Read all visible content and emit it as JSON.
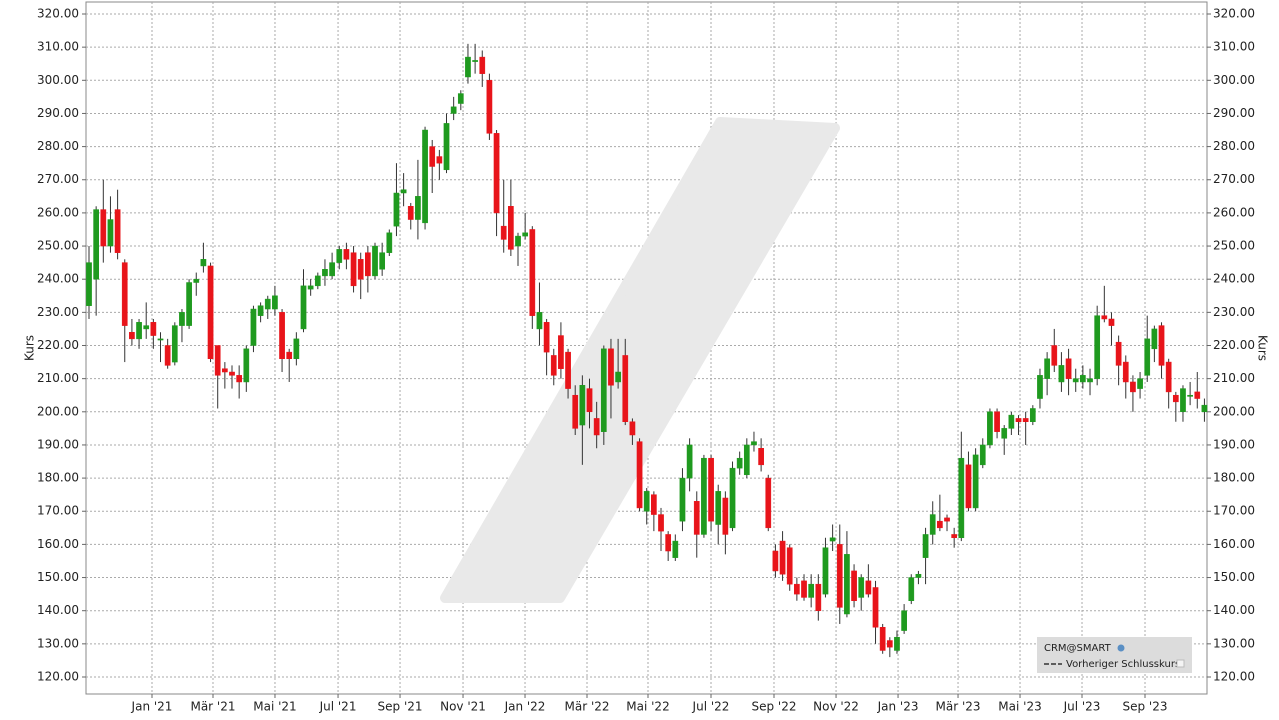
{
  "chart_data": {
    "type": "candlestick",
    "y_axis_label": "Kurs",
    "y2_axis_label": "Kurs",
    "grid": true,
    "legend_position": "bottom-right",
    "up_color": "#1f9a1f",
    "down_color": "#e8141a",
    "wick_color": "#333333",
    "reference_line_label": "Vorheriger Schlusskurs",
    "reference_line_color": "#333333",
    "xlim": [
      -0.42,
      156.36
    ],
    "ylim": [
      114.87,
      323.62
    ],
    "xticks": [
      {
        "value": 8.81,
        "label": "Jan '21"
      },
      {
        "value": 17.34,
        "label": "Mär '21"
      },
      {
        "value": 26.01,
        "label": "Mai '21"
      },
      {
        "value": 34.83,
        "label": "Jul '21"
      },
      {
        "value": 43.5,
        "label": "Sep '21"
      },
      {
        "value": 52.31,
        "label": "Nov '21"
      },
      {
        "value": 60.98,
        "label": "Jan '22"
      },
      {
        "value": 69.65,
        "label": "Mär '22"
      },
      {
        "value": 78.18,
        "label": "Mai '22"
      },
      {
        "value": 86.99,
        "label": "Jul '22"
      },
      {
        "value": 95.8,
        "label": "Sep '22"
      },
      {
        "value": 104.48,
        "label": "Nov '22"
      },
      {
        "value": 113.15,
        "label": "Jan '23"
      },
      {
        "value": 121.54,
        "label": "Mär '23"
      },
      {
        "value": 130.21,
        "label": "Mai '23"
      },
      {
        "value": 138.88,
        "label": "Jul '23"
      },
      {
        "value": 147.69,
        "label": "Sep '23"
      }
    ],
    "yticks": [
      {
        "value": 120,
        "label": "120.00"
      },
      {
        "value": 130,
        "label": "130.00"
      },
      {
        "value": 140,
        "label": "140.00"
      },
      {
        "value": 150,
        "label": "150.00"
      },
      {
        "value": 160,
        "label": "160.00"
      },
      {
        "value": 170,
        "label": "170.00"
      },
      {
        "value": 180,
        "label": "180.00"
      },
      {
        "value": 190,
        "label": "190.00"
      },
      {
        "value": 200,
        "label": "200.00"
      },
      {
        "value": 210,
        "label": "210.00"
      },
      {
        "value": 220,
        "label": "220.00"
      },
      {
        "value": 230,
        "label": "230.00"
      },
      {
        "value": 240,
        "label": "240.00"
      },
      {
        "value": 250,
        "label": "250.00"
      },
      {
        "value": 260,
        "label": "260.00"
      },
      {
        "value": 270,
        "label": "270.00"
      },
      {
        "value": 280,
        "label": "280.00"
      },
      {
        "value": 290,
        "label": "290.00"
      },
      {
        "value": 300,
        "label": "300.00"
      },
      {
        "value": 310,
        "label": "310.00"
      },
      {
        "value": 320,
        "label": "320.00"
      }
    ],
    "series": [
      {
        "name": "CRM@SMART",
        "open": [
          232,
          240,
          261,
          250,
          261,
          245,
          224,
          222,
          225,
          227,
          222,
          220,
          215,
          226,
          226,
          239,
          244,
          244,
          220,
          213,
          212,
          211,
          209,
          220,
          229,
          231,
          231,
          230,
          218,
          216,
          225,
          237,
          238,
          241,
          241,
          245,
          249,
          248,
          246,
          248,
          241,
          243,
          248,
          256,
          266,
          262,
          258,
          257,
          280,
          277,
          273,
          290,
          293,
          301,
          306,
          307,
          300,
          284,
          256,
          262,
          250,
          253,
          255,
          225,
          227,
          217,
          223,
          218,
          205,
          196,
          207,
          198,
          194,
          219,
          209,
          217,
          197,
          191,
          170,
          175,
          169,
          163,
          156,
          167,
          180,
          173,
          163,
          186,
          166,
          174,
          165,
          183,
          181,
          190,
          189,
          180,
          158,
          161,
          159,
          148,
          149,
          144,
          148,
          145,
          161,
          160,
          139,
          152,
          144,
          149,
          147,
          135,
          131,
          128,
          134,
          143,
          150,
          156,
          163,
          167,
          168,
          163,
          162,
          184,
          171,
          184,
          190,
          200,
          192,
          195,
          198,
          198,
          197,
          204,
          210,
          220,
          209,
          216,
          209,
          209,
          209,
          210,
          229,
          228,
          221,
          215,
          209,
          207,
          211,
          219,
          226,
          215,
          205,
          200,
          205,
          206,
          200
        ],
        "high": [
          250,
          262,
          270,
          265,
          267,
          246,
          228,
          228,
          233,
          228,
          224,
          222,
          227,
          231,
          240,
          242,
          251,
          245,
          220,
          215,
          214,
          214,
          220,
          232,
          233,
          235,
          238,
          231,
          219,
          224,
          243,
          240,
          242,
          246,
          248,
          250,
          251,
          250,
          248,
          250,
          251,
          251,
          255,
          275,
          272,
          263,
          276,
          286,
          282,
          279,
          290,
          295,
          297,
          311,
          311,
          309,
          302,
          285,
          270,
          270,
          254,
          260,
          256,
          239,
          228,
          219,
          227,
          219,
          208,
          211,
          210,
          203,
          220,
          222,
          222,
          222,
          198,
          192,
          177,
          176,
          171,
          164,
          163,
          183,
          192,
          176,
          187,
          187,
          178,
          176,
          185,
          188,
          192,
          194,
          192,
          181,
          160,
          164,
          160,
          150,
          151,
          151,
          151,
          162,
          166,
          166,
          164,
          154,
          151,
          154,
          149,
          136,
          132,
          134,
          142,
          151,
          152,
          165,
          173,
          175,
          169,
          165,
          194,
          188,
          189,
          192,
          201,
          201,
          196,
          200,
          199,
          200,
          202,
          213,
          218,
          225,
          218,
          219,
          213,
          214,
          213,
          232,
          238,
          230,
          223,
          217,
          211,
          212,
          229,
          226,
          227,
          216,
          206,
          208,
          209,
          212,
          204
        ],
        "low": [
          228,
          229,
          245,
          248,
          246,
          215,
          220,
          219,
          222,
          219,
          215,
          213,
          214,
          221,
          225,
          235,
          242,
          215,
          201,
          207,
          207,
          204,
          206,
          218,
          227,
          228,
          229,
          212,
          209,
          214,
          224,
          235,
          237,
          238,
          240,
          243,
          243,
          236,
          234,
          236,
          240,
          241,
          247,
          253,
          262,
          255,
          252,
          255,
          266,
          270,
          272,
          288,
          291,
          299,
          302,
          298,
          282,
          253,
          248,
          247,
          244,
          252,
          225,
          220,
          211,
          208,
          210,
          204,
          193,
          184,
          195,
          189,
          190,
          198,
          207,
          196,
          190,
          170,
          166,
          164,
          158,
          155,
          155,
          164,
          176,
          156,
          162,
          164,
          160,
          157,
          164,
          181,
          180,
          188,
          182,
          164,
          150,
          149,
          146,
          143,
          143,
          141,
          137,
          144,
          158,
          136,
          138,
          141,
          140,
          144,
          130,
          127,
          126,
          127,
          133,
          142,
          148,
          148,
          160,
          164,
          164,
          159,
          161,
          170,
          170,
          183,
          189,
          192,
          187,
          193,
          193,
          190,
          196,
          201,
          205,
          212,
          206,
          205,
          206,
          207,
          205,
          208,
          227,
          220,
          208,
          204,
          200,
          204,
          209,
          215,
          210,
          201,
          197,
          197,
          202,
          201,
          197
        ],
        "close": [
          245,
          261,
          250,
          258,
          248,
          226,
          222,
          227,
          226,
          223,
          222,
          214,
          226,
          230,
          239,
          240,
          246,
          216,
          211,
          212,
          211,
          209,
          219,
          231,
          232,
          234,
          235,
          216,
          216,
          222,
          238,
          238,
          241,
          243,
          245,
          249,
          246,
          238,
          240,
          241,
          250,
          248,
          254,
          266,
          267,
          258,
          265,
          285,
          274,
          275,
          287,
          292,
          296,
          307,
          306,
          302,
          284,
          260,
          252,
          249,
          253,
          254,
          229,
          230,
          218,
          211,
          213,
          207,
          195,
          208,
          200,
          193,
          219,
          208,
          212,
          197,
          193,
          171,
          176,
          169,
          164,
          158,
          161,
          180,
          190,
          163,
          186,
          167,
          176,
          163,
          183,
          186,
          190,
          191,
          184,
          165,
          152,
          151,
          148,
          145,
          144,
          148,
          140,
          159,
          162,
          141,
          157,
          143,
          150,
          145,
          135,
          128,
          129,
          132,
          140,
          150,
          151,
          163,
          169,
          165,
          167,
          162,
          186,
          171,
          187,
          190,
          200,
          194,
          195,
          199,
          197,
          197,
          201,
          211,
          216,
          214,
          214,
          210,
          210,
          211,
          210,
          229,
          228,
          226,
          214,
          209,
          206,
          210,
          222,
          225,
          214,
          206,
          203,
          207,
          205,
          204,
          202
        ]
      }
    ]
  }
}
